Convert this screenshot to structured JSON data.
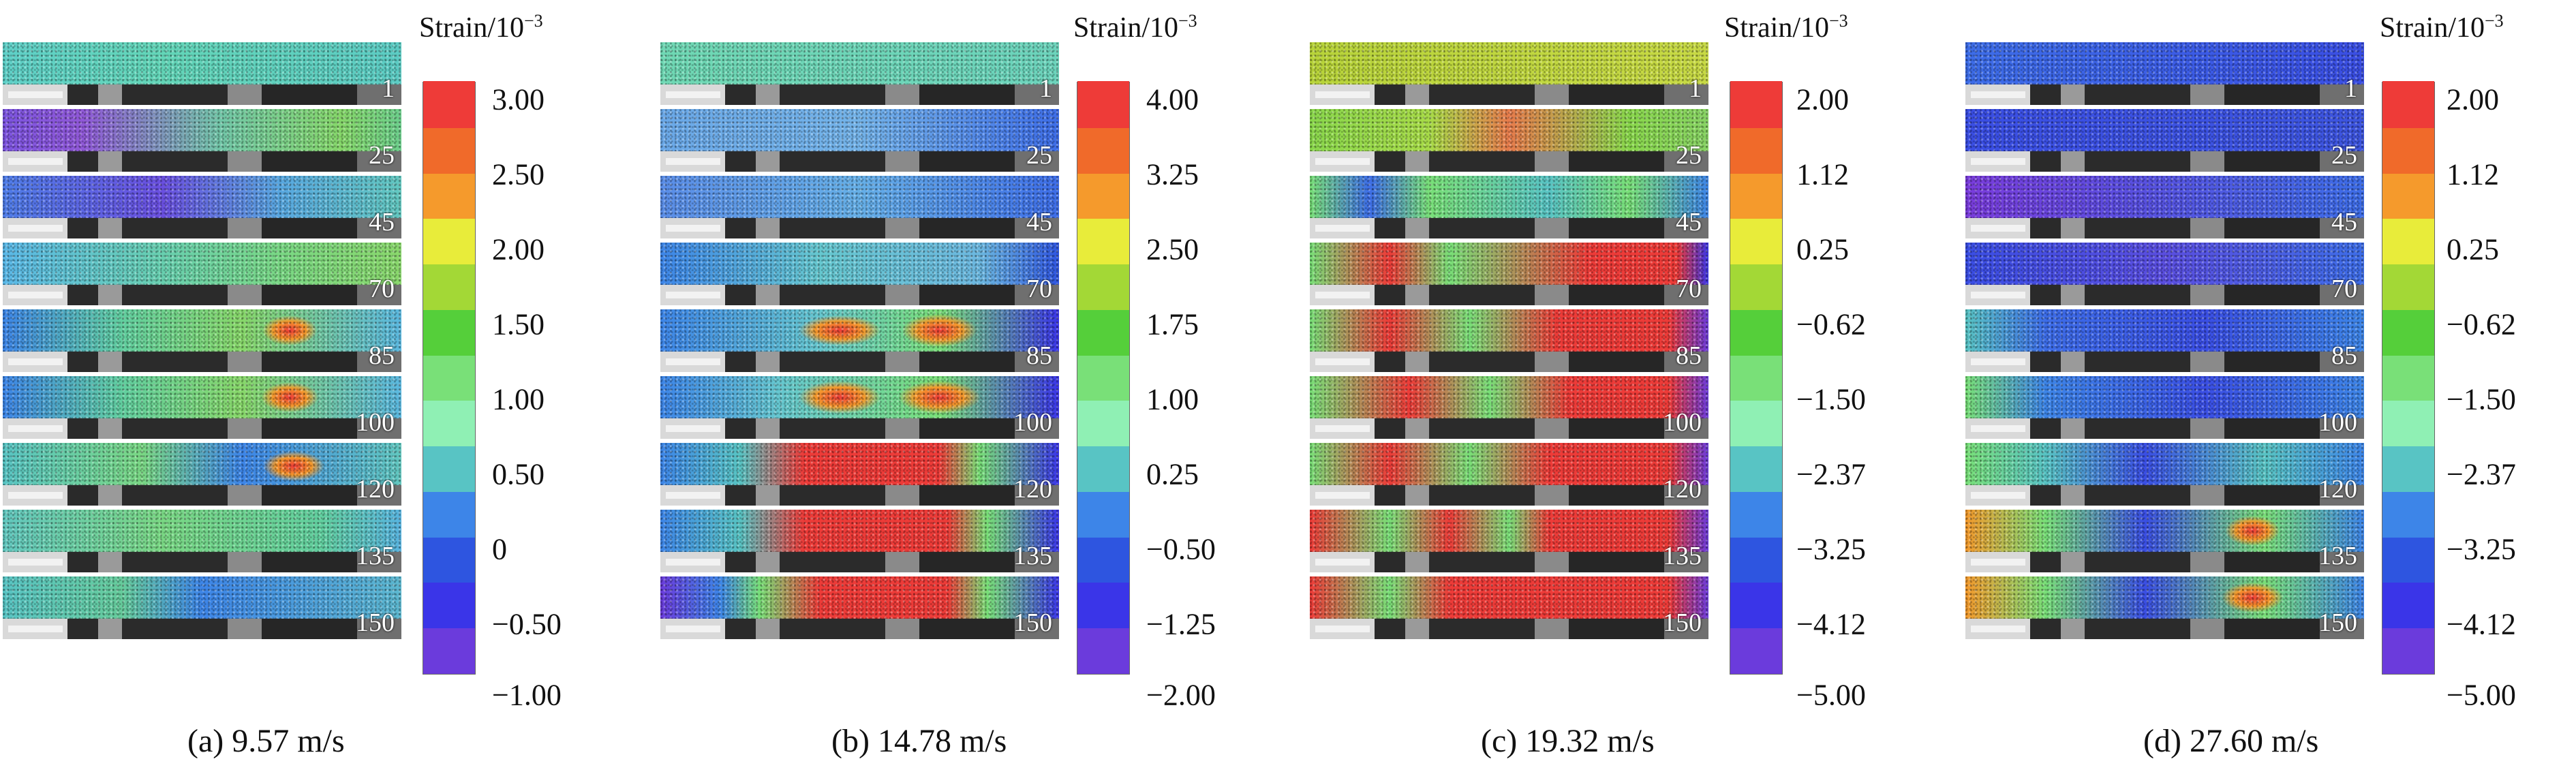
{
  "colorbar_colors": [
    "#6b3bdc",
    "#3a35e8",
    "#2e55e0",
    "#3d85e8",
    "#58c4c4",
    "#8ff0b4",
    "#79e078",
    "#55cf3a",
    "#a3d836",
    "#e8ec3a",
    "#f59a2c",
    "#f06a2a",
    "#ee3b38"
  ],
  "panels": [
    {
      "caption": "(a) 9.57 m/s",
      "colorbar_title": "Strain/10",
      "colorbar_exp": "−3",
      "ticks": [
        "3.00",
        "2.50",
        "2.00",
        "1.50",
        "1.00",
        "0.50",
        "0",
        "−0.50",
        "−1.00"
      ],
      "frames": [
        "1",
        "25",
        "45",
        "70",
        "85",
        "100",
        "120",
        "135",
        "150"
      ]
    },
    {
      "caption": "(b) 14.78 m/s",
      "colorbar_title": "Strain/10",
      "colorbar_exp": "−3",
      "ticks": [
        "4.00",
        "3.25",
        "2.50",
        "1.75",
        "1.00",
        "0.25",
        "−0.50",
        "−1.25",
        "−2.00"
      ],
      "frames": [
        "1",
        "25",
        "45",
        "70",
        "85",
        "100",
        "120",
        "135",
        "150"
      ]
    },
    {
      "caption": "(c) 19.32 m/s",
      "colorbar_title": "Strain/10",
      "colorbar_exp": "−3",
      "ticks": [
        "2.00",
        "1.12",
        "0.25",
        "−0.62",
        "−1.50",
        "−2.37",
        "−3.25",
        "−4.12",
        "−5.00"
      ],
      "frames": [
        "1",
        "25",
        "45",
        "70",
        "85",
        "100",
        "120",
        "135",
        "150"
      ]
    },
    {
      "caption": "(d) 27.60 m/s",
      "colorbar_title": "Strain/10",
      "colorbar_exp": "−3",
      "ticks": [
        "2.00",
        "1.12",
        "0.25",
        "−0.62",
        "−1.50",
        "−2.37",
        "−3.25",
        "−4.12",
        "−5.00"
      ],
      "frames": [
        "1",
        "25",
        "45",
        "70",
        "85",
        "100",
        "120",
        "135",
        "150"
      ]
    }
  ]
}
